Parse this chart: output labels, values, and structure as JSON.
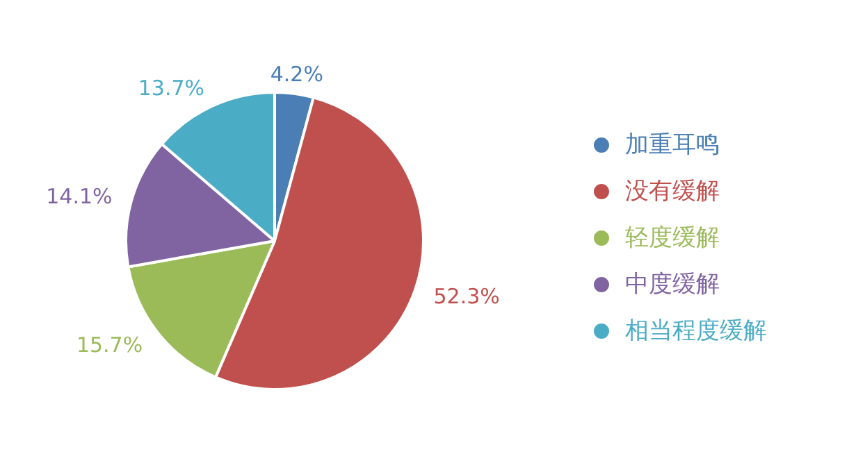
{
  "chart_data": {
    "type": "pie",
    "categories": [
      "加重耳鸣",
      "没有缓解",
      "轻度缓解",
      "中度缓解",
      "相当程度缓解"
    ],
    "values": [
      4.2,
      52.3,
      15.7,
      14.1,
      13.7
    ],
    "colors": [
      "#4a7eb5",
      "#c0504d",
      "#9bbb59",
      "#8064a2",
      "#4bacc6"
    ],
    "value_labels": [
      "4.2%",
      "52.3%",
      "15.7%",
      "14.1%",
      "13.7%"
    ],
    "legend": "right"
  }
}
